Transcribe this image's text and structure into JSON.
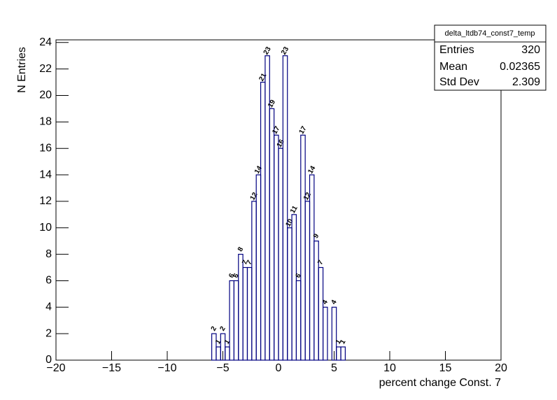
{
  "chart_data": {
    "type": "histogram",
    "x_label": "percent change Const. 7",
    "y_label": "N Entries",
    "bins": [
      -6,
      -5.6,
      -5.2,
      -4.8,
      -4.4,
      -4,
      -3.6,
      -3.2,
      -2.8,
      -2.4,
      -2,
      -1.6,
      -1.2,
      -0.8,
      -0.4,
      0,
      0.4,
      0.8,
      1.2,
      1.6,
      2,
      2.4,
      2.8,
      3.2,
      3.6,
      4,
      4.4,
      4.8,
      5.2,
      5.6,
      6
    ],
    "values": [
      2,
      1,
      2,
      1,
      6,
      6,
      8,
      7,
      7,
      12,
      14,
      21,
      23,
      19,
      17,
      16,
      23,
      10,
      11,
      6,
      17,
      12,
      14,
      9,
      7,
      4,
      0,
      4,
      1,
      1
    ],
    "color": "#000080",
    "xlim": [
      -20,
      20
    ],
    "ylim": [
      0,
      24.2
    ],
    "xticks": [
      {
        "value": -20,
        "label": "−20"
      },
      {
        "value": -15,
        "label": "−15"
      },
      {
        "value": -10,
        "label": "−10"
      },
      {
        "value": -5,
        "label": "−5"
      },
      0,
      5,
      10,
      15,
      20
    ],
    "yticks": [
      0,
      2,
      4,
      6,
      8,
      10,
      12,
      14,
      16,
      18,
      20,
      22,
      24
    ],
    "stats": {
      "title": "delta_ltdb74_const7_temp",
      "rows": [
        [
          "Entries",
          "320"
        ],
        [
          "Mean",
          "0.02365"
        ],
        [
          "Std Dev",
          "2.309"
        ]
      ]
    }
  }
}
